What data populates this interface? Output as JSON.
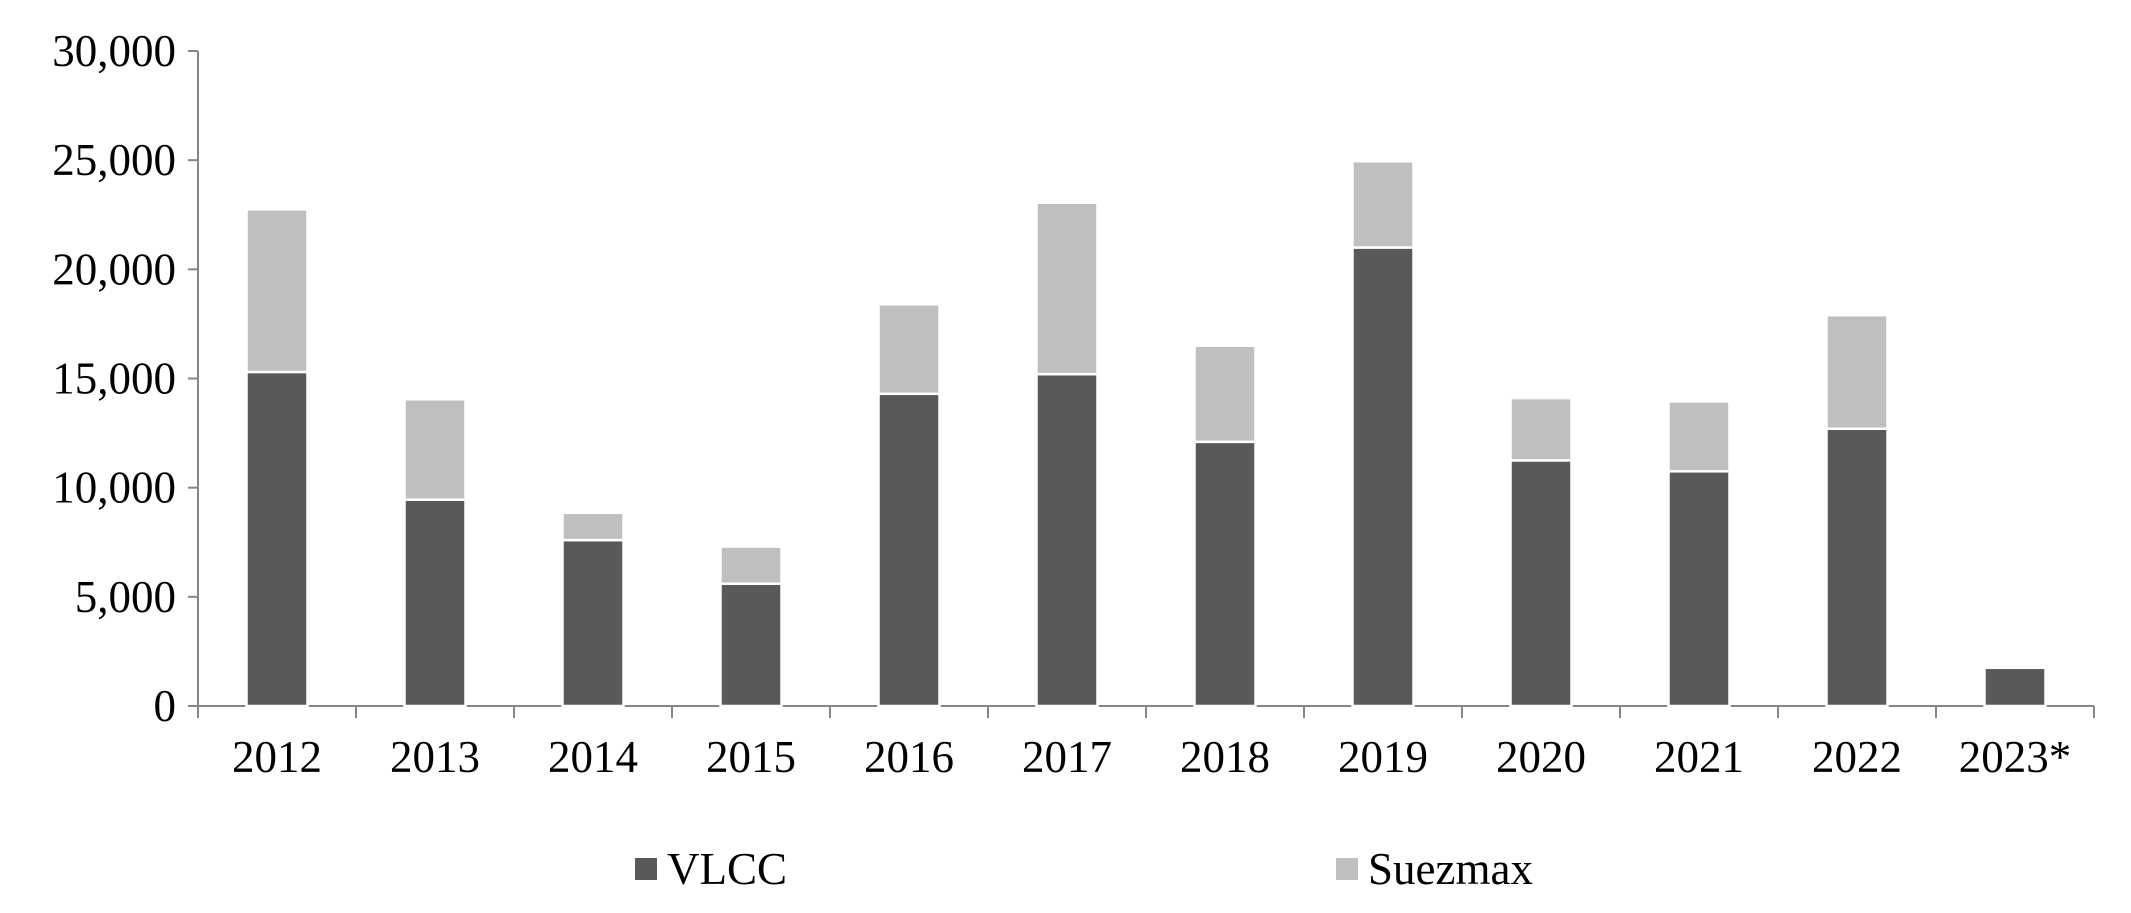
{
  "chart_data": {
    "type": "bar",
    "stacked": true,
    "categories": [
      "2012",
      "2013",
      "2014",
      "2015",
      "2016",
      "2017",
      "2018",
      "2019",
      "2020",
      "2021",
      "2022",
      "2023*"
    ],
    "series": [
      {
        "name": "VLCC",
        "color": "#595959",
        "values": [
          15300,
          9450,
          7600,
          5600,
          14300,
          15200,
          12100,
          21000,
          11250,
          10750,
          12700,
          1750
        ]
      },
      {
        "name": "Suezmax",
        "color": "#bfbfbf",
        "values": [
          7450,
          4600,
          1250,
          1700,
          4100,
          7850,
          4400,
          3950,
          2850,
          3200,
          5200,
          0
        ]
      }
    ],
    "title": "",
    "xlabel": "",
    "ylabel": "",
    "ylim": [
      0,
      30000
    ],
    "yticks": [
      0,
      5000,
      10000,
      15000,
      20000,
      25000,
      30000
    ],
    "ytick_labels": [
      "0",
      "5,000",
      "10,000",
      "15,000",
      "20,000",
      "25,000",
      "30,000"
    ],
    "grid": false,
    "legend_position": "bottom"
  }
}
